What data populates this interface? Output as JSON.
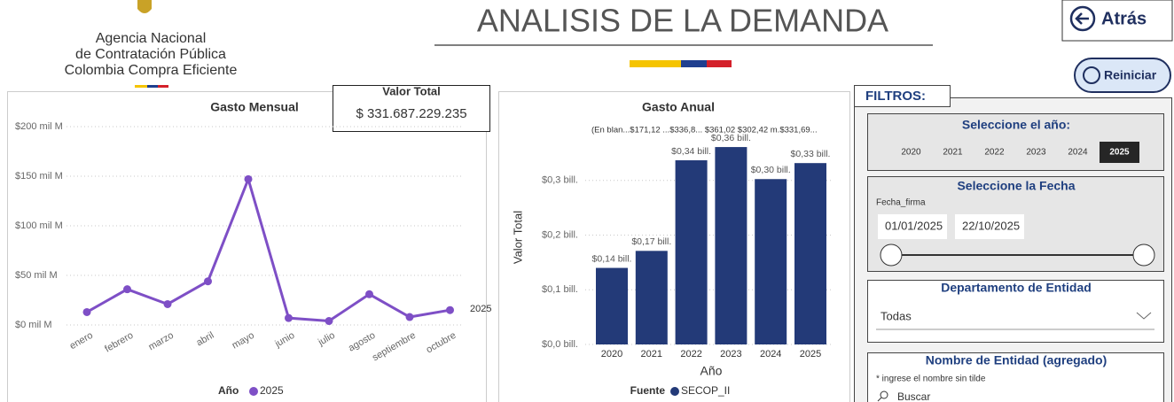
{
  "header": {
    "org_lines": [
      "Agencia Nacional",
      "de Contratación Pública",
      "Colombia Compra Eficiente"
    ],
    "title": "ANALISIS DE LA DEMANDA",
    "back_button": "Atrás",
    "reset_button": "Reiniciar"
  },
  "card": {
    "label": "Valor Total",
    "value": "$ 331.687.229.235"
  },
  "chart_data": [
    {
      "type": "line",
      "title": "Gasto Mensual",
      "categories": [
        "enero",
        "febrero",
        "marzo",
        "abril",
        "mayo",
        "junio",
        "julio",
        "agosto",
        "septiembre",
        "octubre"
      ],
      "legend_title": "Año",
      "series": [
        {
          "name": "2025",
          "color": "#7e4fc6",
          "values": [
            13,
            36,
            21,
            44,
            147,
            7,
            4,
            31,
            8,
            15
          ]
        }
      ],
      "ylim": [
        0,
        200
      ],
      "yticks": [
        {
          "value": 0,
          "label": "$0 mil M"
        },
        {
          "value": 50,
          "label": "$50 mil M"
        },
        {
          "value": 100,
          "label": "$100 mil M"
        },
        {
          "value": 150,
          "label": "$150 mil M"
        },
        {
          "value": 200,
          "label": "$200 mil M"
        }
      ],
      "grid": true
    },
    {
      "type": "bar",
      "title": "Gasto Anual",
      "annotation": "(En blan...$171,12 ...$336,8... $361,02 $302,42 m.$331,69...",
      "categories": [
        "2020",
        "2021",
        "2022",
        "2023",
        "2024",
        "2025"
      ],
      "xlabel": "Año",
      "ylabel": "Valor Total",
      "legend_title": "Fuente",
      "series": [
        {
          "name": "SECOP_II",
          "color": "#233a78",
          "values": [
            0.14,
            0.17112,
            0.3368,
            0.36102,
            0.30242,
            0.33169
          ],
          "value_labels": [
            "$0,14 bill.",
            "$0,17 bill.",
            "$0,34 bill.",
            "$0,36 bill.",
            "$0,30 bill.",
            "$0,33 bill."
          ]
        }
      ],
      "ylim": [
        0,
        0.4
      ],
      "yticks": [
        {
          "value": 0,
          "label": "$0,0 bill."
        },
        {
          "value": 0.1,
          "label": "$0,1 bill."
        },
        {
          "value": 0.2,
          "label": "$0,2 bill."
        },
        {
          "value": 0.3,
          "label": "$0,3 bill."
        }
      ],
      "grid": true
    }
  ],
  "filters": {
    "title": "FILTROS:",
    "year": {
      "title": "Seleccione el año:",
      "options": [
        "2020",
        "2021",
        "2022",
        "2023",
        "2024",
        "2025"
      ],
      "selected": 5
    },
    "date": {
      "title": "Seleccione la Fecha",
      "field": "Fecha_firma",
      "start": "01/01/2025",
      "end": "22/10/2025"
    },
    "department": {
      "title": "Departamento de Entidad",
      "value": "Todas"
    },
    "entity": {
      "title": "Nombre de Entidad (agregado)",
      "hint": "* ingrese el nombre sin tilde",
      "placeholder": "Buscar"
    }
  }
}
